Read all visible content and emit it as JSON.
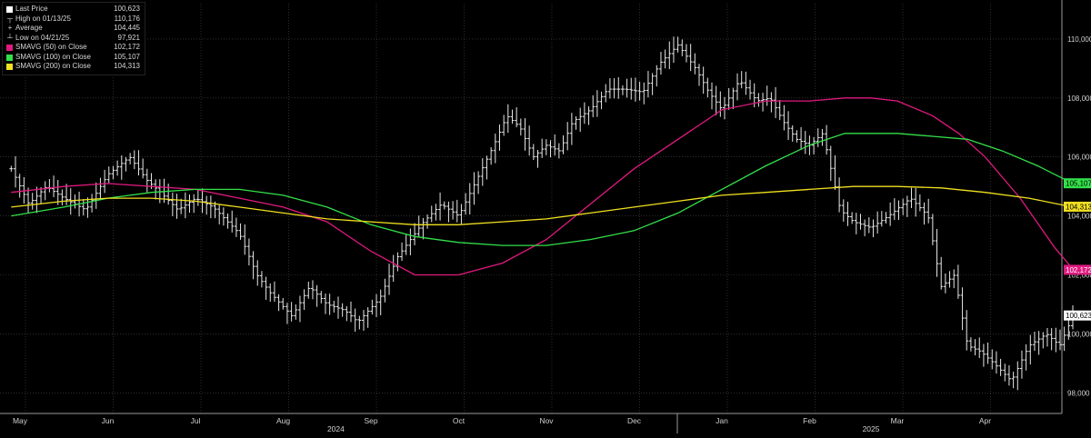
{
  "legend": {
    "last_price": {
      "label": "Last Price",
      "value": "100,623",
      "color": "#ffffff"
    },
    "high": {
      "label": "High on 01/13/25",
      "value": "110,176"
    },
    "average": {
      "label": "Average",
      "value": "104,445"
    },
    "low": {
      "label": "Low on 04/21/25",
      "value": "97,921"
    },
    "sma50": {
      "label": "SMAVG (50)  on Close",
      "value": "102,172",
      "color": "#e0197f"
    },
    "sma100": {
      "label": "SMAVG (100)  on Close",
      "value": "105,107",
      "color": "#33e04a"
    },
    "sma200": {
      "label": "SMAVG (200)  on Close",
      "value": "104,313",
      "color": "#f0e020"
    }
  },
  "chart_data": {
    "type": "line",
    "y_axis_side": "right",
    "ylim": [
      97.3,
      111.2
    ],
    "y_ticks": [
      98,
      100,
      102,
      104,
      106,
      108,
      110
    ],
    "y_tick_labels": [
      "98,000",
      "100,000",
      "102,000",
      "104,000",
      "106,000",
      "108,000",
      "110,000"
    ],
    "x_month_labels": [
      "May",
      "Jun",
      "Jul",
      "Aug",
      "Sep",
      "Oct",
      "Nov",
      "Dec",
      "Jan",
      "Feb",
      "Mar",
      "Apr"
    ],
    "x_month_positions": [
      0,
      1,
      2,
      3,
      4,
      5,
      6,
      7,
      8,
      9,
      10,
      11
    ],
    "x_year_labels": [
      {
        "label": "2024",
        "x": 3.6
      },
      {
        "label": "2025",
        "x": 9.7
      }
    ],
    "grid": true,
    "legend_position": "top-left",
    "price_style": "ohlc-bars",
    "series": [
      {
        "name": "Last Price",
        "key": "price",
        "color": "#ffffff",
        "x": [
          -0.1,
          0.1,
          0.3,
          0.5,
          0.75,
          1.0,
          1.25,
          1.45,
          1.6,
          1.8,
          2.0,
          2.2,
          2.5,
          2.7,
          2.85,
          3.1,
          3.3,
          3.5,
          3.7,
          3.85,
          4.1,
          4.3,
          4.45,
          4.6,
          4.8,
          5.0,
          5.2,
          5.4,
          5.55,
          5.7,
          5.85,
          6.0,
          6.15,
          6.3,
          6.5,
          6.7,
          6.9,
          7.1,
          7.3,
          7.5,
          7.7,
          7.85,
          8.0,
          8.2,
          8.4,
          8.55,
          8.7,
          8.85,
          9.0,
          9.15,
          9.35,
          9.5,
          9.7,
          9.9,
          10.15,
          10.35,
          10.5,
          10.65,
          10.8,
          10.95,
          11.1,
          11.3,
          11.5,
          11.7,
          11.85,
          12.0
        ],
        "y": [
          105.6,
          104.4,
          105.0,
          104.6,
          104.2,
          105.4,
          106.0,
          105.2,
          104.8,
          104.2,
          104.6,
          104.3,
          103.4,
          102.0,
          101.4,
          100.6,
          101.6,
          101.0,
          100.8,
          100.4,
          101.2,
          102.6,
          103.2,
          103.8,
          104.4,
          104.0,
          105.2,
          106.4,
          107.4,
          107.0,
          106.0,
          106.4,
          106.2,
          107.2,
          107.6,
          108.3,
          108.3,
          108.2,
          109.2,
          109.8,
          109.0,
          108.2,
          107.6,
          108.6,
          107.9,
          108.0,
          107.2,
          106.6,
          106.4,
          106.8,
          104.2,
          103.8,
          103.6,
          104.0,
          104.6,
          104.0,
          101.6,
          102.0,
          99.6,
          99.4,
          99.0,
          98.4,
          99.6,
          100.0,
          99.6,
          100.6
        ]
      },
      {
        "name": "SMAVG (50)  on Close",
        "key": "sma50",
        "color": "#e0197f",
        "x": [
          -0.1,
          0.5,
          1.0,
          1.5,
          2.0,
          2.5,
          3.0,
          3.5,
          4.0,
          4.5,
          5.0,
          5.5,
          6.0,
          6.5,
          7.0,
          7.5,
          8.0,
          8.5,
          9.0,
          9.4,
          9.7,
          10.0,
          10.4,
          10.7,
          11.0,
          11.4,
          11.8,
          12.0
        ],
        "y": [
          104.8,
          105.0,
          105.1,
          105.0,
          104.9,
          104.6,
          104.3,
          103.8,
          102.8,
          102.0,
          102.0,
          102.4,
          103.2,
          104.4,
          105.6,
          106.6,
          107.6,
          107.9,
          107.9,
          108.0,
          108.0,
          107.9,
          107.4,
          106.8,
          106.0,
          104.6,
          102.9,
          102.2
        ]
      },
      {
        "name": "SMAVG (100)  on Close",
        "key": "sma100",
        "color": "#33e04a",
        "x": [
          -0.1,
          0.5,
          1.0,
          1.5,
          2.0,
          2.5,
          3.0,
          3.5,
          4.0,
          4.5,
          5.0,
          5.5,
          6.0,
          6.5,
          7.0,
          7.5,
          8.0,
          8.5,
          9.0,
          9.4,
          9.7,
          10.0,
          10.4,
          10.8,
          11.2,
          11.6,
          12.0
        ],
        "y": [
          104.0,
          104.3,
          104.6,
          104.8,
          104.9,
          104.9,
          104.7,
          104.3,
          103.7,
          103.3,
          103.1,
          103.0,
          103.0,
          103.2,
          103.5,
          104.1,
          104.9,
          105.7,
          106.4,
          106.8,
          106.8,
          106.8,
          106.7,
          106.6,
          106.2,
          105.7,
          105.1
        ]
      },
      {
        "name": "SMAVG (200)  on Close",
        "key": "sma200",
        "color": "#f0e020",
        "x": [
          -0.1,
          0.5,
          1.0,
          1.5,
          2.0,
          2.5,
          3.0,
          3.5,
          4.0,
          4.5,
          5.0,
          5.5,
          6.0,
          6.5,
          7.0,
          7.5,
          8.0,
          8.5,
          9.0,
          9.5,
          10.0,
          10.5,
          11.0,
          11.5,
          12.0
        ],
        "y": [
          104.3,
          104.5,
          104.6,
          104.6,
          104.5,
          104.3,
          104.1,
          103.9,
          103.8,
          103.7,
          103.7,
          103.8,
          103.9,
          104.1,
          104.3,
          104.5,
          104.7,
          104.8,
          104.9,
          105.0,
          105.0,
          104.95,
          104.8,
          104.6,
          104.3
        ]
      }
    ],
    "end_labels": [
      {
        "key": "sma100",
        "text": "105,107",
        "bg": "#33e04a",
        "fg": "#000000",
        "y": 105.107
      },
      {
        "key": "sma200",
        "text": "104,313",
        "bg": "#f0e020",
        "fg": "#000000",
        "y": 104.313
      },
      {
        "key": "sma50",
        "text": "102,172",
        "bg": "#e0197f",
        "fg": "#ffffff",
        "y": 102.172
      },
      {
        "key": "price",
        "text": "100,623",
        "bg": "#ffffff",
        "fg": "#000000",
        "y": 100.623
      }
    ]
  }
}
